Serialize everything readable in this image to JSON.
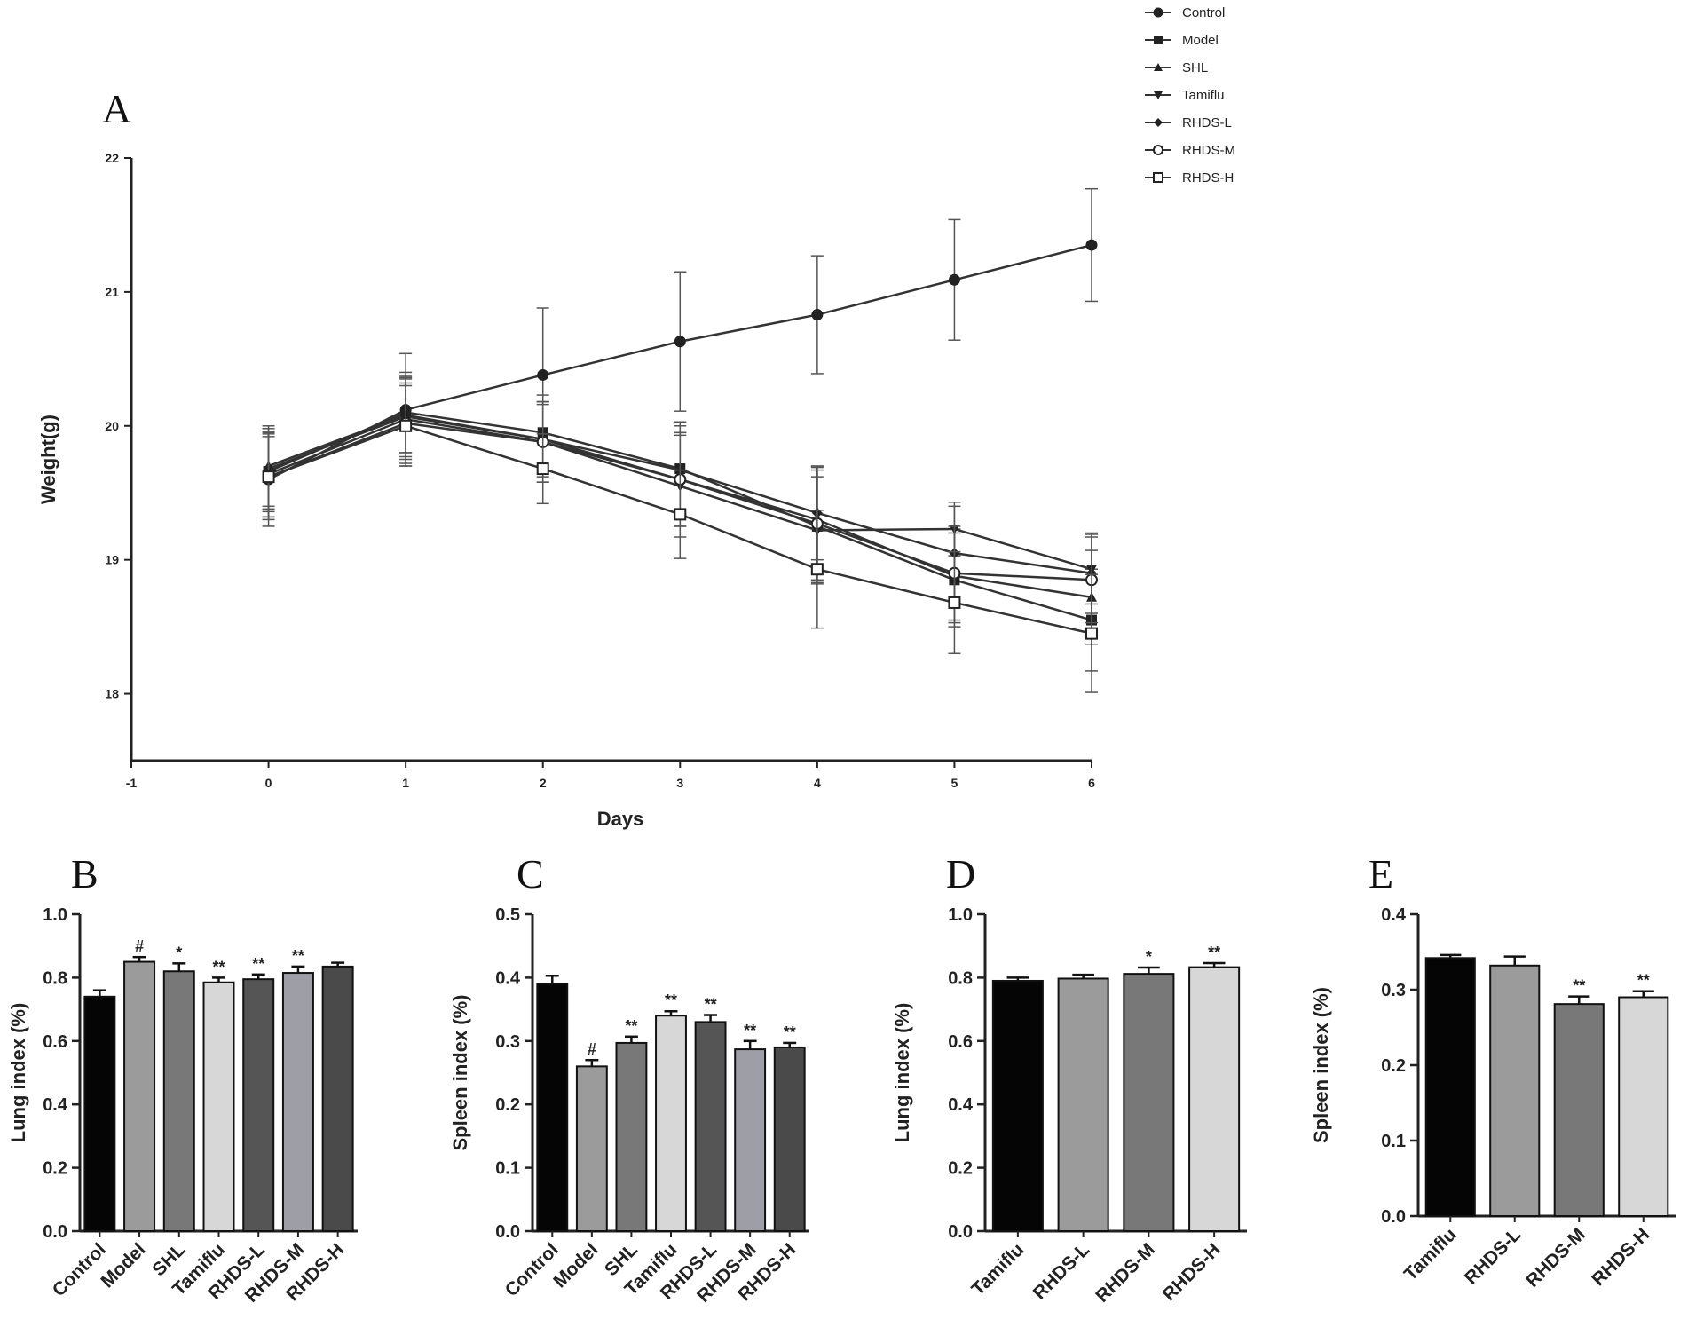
{
  "chart_data": [
    {
      "panel": "A",
      "type": "line",
      "xlabel": "Days",
      "ylabel": "Weight(g)",
      "xlim": [
        -1,
        6
      ],
      "ylim": [
        17.5,
        22
      ],
      "xticks": [
        "-1",
        "0",
        "1",
        "2",
        "3",
        "4",
        "5",
        "6"
      ],
      "yticks": [
        "18",
        "19",
        "20",
        "21",
        "22"
      ],
      "x": [
        0,
        1,
        2,
        3,
        4,
        5,
        6
      ],
      "series": [
        {
          "name": "Control",
          "marker": "circle-filled",
          "values": [
            19.6,
            20.12,
            20.38,
            20.63,
            20.83,
            21.09,
            21.35
          ],
          "errors": [
            0.35,
            0.42,
            0.5,
            0.52,
            0.44,
            0.45,
            0.42
          ]
        },
        {
          "name": "Model",
          "marker": "square-filled",
          "values": [
            19.66,
            20.1,
            19.95,
            19.68,
            19.25,
            18.85,
            18.55
          ],
          "errors": [
            0.3,
            0.3,
            0.28,
            0.35,
            0.42,
            0.35,
            0.38
          ]
        },
        {
          "name": "SHL",
          "marker": "triangle-up",
          "values": [
            19.7,
            20.08,
            19.9,
            19.6,
            19.3,
            18.88,
            18.72
          ],
          "errors": [
            0.3,
            0.28,
            0.26,
            0.35,
            0.4,
            0.35,
            0.35
          ]
        },
        {
          "name": "Tamiflu",
          "marker": "triangle-down",
          "values": [
            19.64,
            20.05,
            19.88,
            19.55,
            19.22,
            19.23,
            18.93
          ],
          "errors": [
            0.32,
            0.3,
            0.3,
            0.38,
            0.4,
            0.2,
            0.26
          ]
        },
        {
          "name": "RHDS-L",
          "marker": "diamond-filled",
          "values": [
            19.68,
            20.07,
            19.9,
            19.67,
            19.35,
            19.05,
            18.9
          ],
          "errors": [
            0.3,
            0.3,
            0.28,
            0.33,
            0.35,
            0.35,
            0.3
          ]
        },
        {
          "name": "RHDS-M",
          "marker": "circle-open",
          "values": [
            19.62,
            20.02,
            19.88,
            19.6,
            19.27,
            18.9,
            18.85
          ],
          "errors": [
            0.3,
            0.3,
            0.3,
            0.35,
            0.42,
            0.35,
            0.32
          ]
        },
        {
          "name": "RHDS-H",
          "marker": "square-open",
          "values": [
            19.62,
            20.0,
            19.68,
            19.34,
            18.93,
            18.68,
            18.45
          ],
          "errors": [
            0.32,
            0.3,
            0.26,
            0.33,
            0.44,
            0.38,
            0.44
          ]
        }
      ]
    },
    {
      "panel": "B",
      "type": "bar",
      "ylabel": "Lung index (%)",
      "ylim": [
        0,
        1.0
      ],
      "yticks": [
        "0.0",
        "0.2",
        "0.4",
        "0.6",
        "0.8",
        "1.0"
      ],
      "categories": [
        "Control",
        "Model",
        "SHL",
        "Tamiflu",
        "RHDS-L",
        "RHDS-M",
        "RHDS-H"
      ],
      "values": [
        0.74,
        0.85,
        0.82,
        0.785,
        0.795,
        0.815,
        0.835
      ],
      "errors": [
        0.02,
        0.015,
        0.025,
        0.015,
        0.015,
        0.02,
        0.012
      ],
      "annotations": [
        "",
        "#",
        "*",
        "**",
        "**",
        "**",
        ""
      ],
      "colors": [
        "#050505",
        "#9b9b9b",
        "#787878",
        "#d7d7d7",
        "#555555",
        "#9e9ea6",
        "#4a4a4a"
      ]
    },
    {
      "panel": "C",
      "type": "bar",
      "ylabel": "Spleen index (%)",
      "ylim": [
        0,
        0.5
      ],
      "yticks": [
        "0.0",
        "0.1",
        "0.2",
        "0.3",
        "0.4",
        "0.5"
      ],
      "categories": [
        "Control",
        "Model",
        "SHL",
        "Tamiflu",
        "RHDS-L",
        "RHDS-M",
        "RHDS-H"
      ],
      "values": [
        0.39,
        0.26,
        0.297,
        0.34,
        0.33,
        0.287,
        0.29
      ],
      "errors": [
        0.013,
        0.01,
        0.01,
        0.007,
        0.011,
        0.013,
        0.007
      ],
      "annotations": [
        "",
        "#",
        "**",
        "**",
        "**",
        "**",
        "**"
      ],
      "colors": [
        "#050505",
        "#9b9b9b",
        "#787878",
        "#d7d7d7",
        "#555555",
        "#9e9ea6",
        "#4a4a4a"
      ]
    },
    {
      "panel": "D",
      "type": "bar",
      "ylabel": "Lung index (%)",
      "ylim": [
        0,
        1.0
      ],
      "yticks": [
        "0.0",
        "0.2",
        "0.4",
        "0.6",
        "0.8",
        "1.0"
      ],
      "categories": [
        "Tamiflu",
        "RHDS-L",
        "RHDS-M",
        "RHDS-H"
      ],
      "values": [
        0.79,
        0.797,
        0.812,
        0.833
      ],
      "errors": [
        0.01,
        0.012,
        0.02,
        0.013
      ],
      "annotations": [
        "",
        "",
        "*",
        "**"
      ],
      "colors": [
        "#050505",
        "#9b9b9b",
        "#787878",
        "#d7d7d7"
      ]
    },
    {
      "panel": "E",
      "type": "bar",
      "ylabel": "Spleen index (%)",
      "ylim": [
        0,
        0.4
      ],
      "yticks": [
        "0.0",
        "0.1",
        "0.2",
        "0.3",
        "0.4"
      ],
      "categories": [
        "Tamiflu",
        "RHDS-L",
        "RHDS-M",
        "RHDS-H"
      ],
      "values": [
        0.342,
        0.332,
        0.281,
        0.29
      ],
      "errors": [
        0.004,
        0.012,
        0.01,
        0.008
      ],
      "annotations": [
        "",
        "",
        "**",
        "**"
      ],
      "colors": [
        "#050505",
        "#9b9b9b",
        "#787878",
        "#d7d7d7"
      ]
    }
  ]
}
